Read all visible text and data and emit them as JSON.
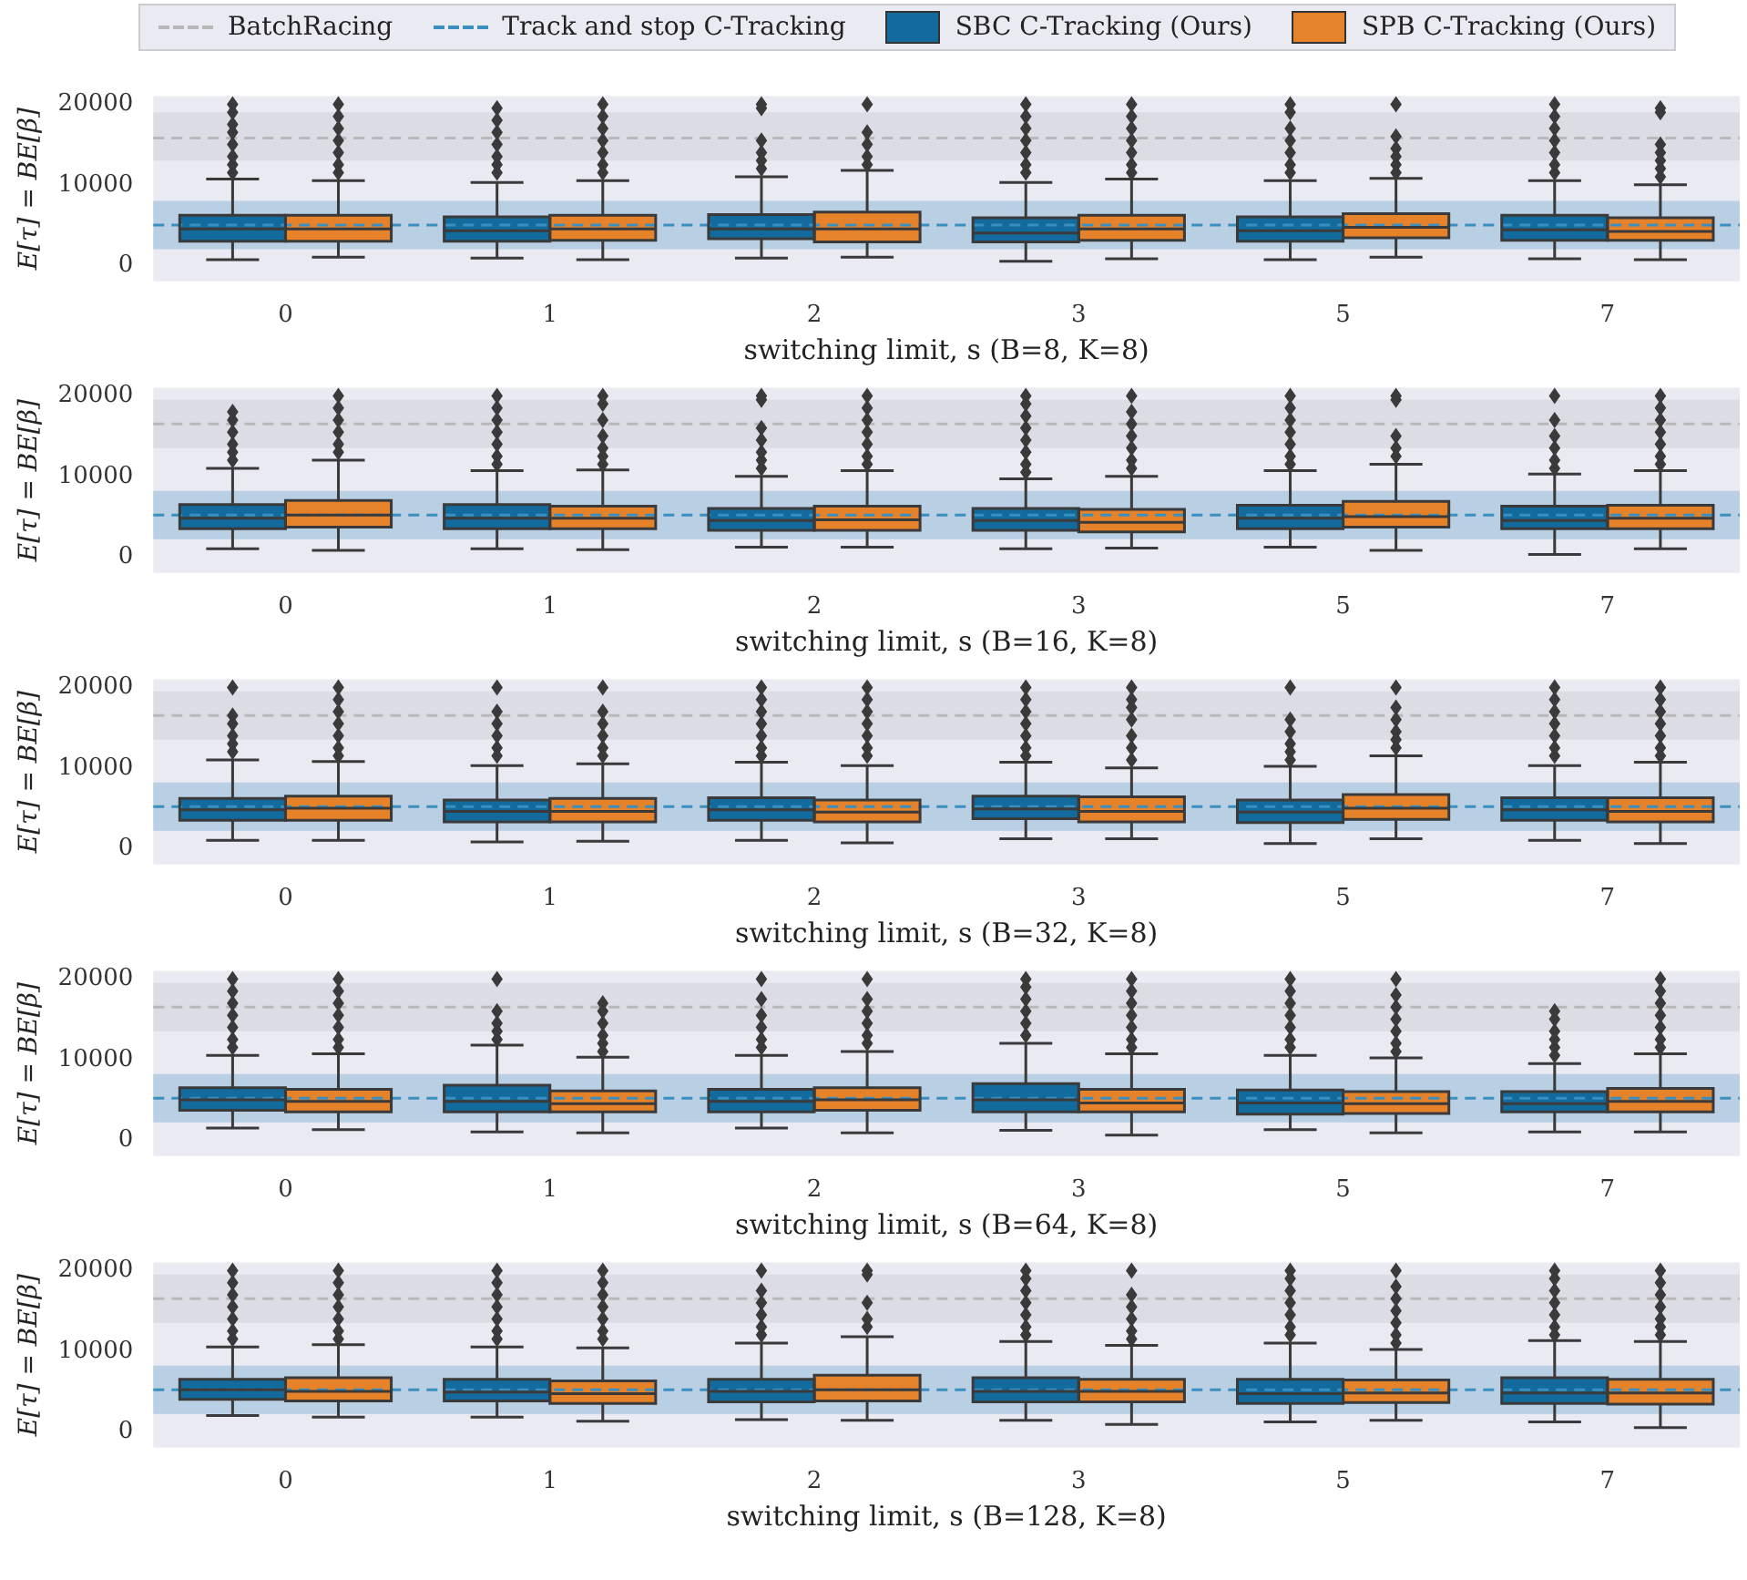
{
  "chart_data": [
    {
      "type": "box",
      "xlabel": "switching limit, s (B=8, K=8)",
      "ylabel": "E[τ] = BE[β]",
      "categories": [
        "0",
        "1",
        "2",
        "3",
        "5",
        "7"
      ],
      "ylim": [
        -2000,
        21000
      ],
      "yticks": [
        0,
        10000,
        20000
      ],
      "legend": "top",
      "marker": "diamond",
      "ref_lines": [
        {
          "axis": "y",
          "value": 15800,
          "label": "BatchRacing",
          "color": "#b8b8b8",
          "line_style": "dashed"
        },
        {
          "axis": "y",
          "value": 5000,
          "label": "Track and stop C-Tracking",
          "color": "#3a8fc0",
          "line_style": "dashed"
        }
      ],
      "bands": [
        {
          "axis": "y",
          "from": 13000,
          "to": 19000,
          "color": "#dcdce4"
        },
        {
          "axis": "y",
          "from": 2000,
          "to": 8000,
          "color": "#b9cfe3"
        }
      ],
      "series": [
        {
          "name": "SBC C-Tracking (Ours)",
          "color": "#136a9c",
          "boxes": [
            {
              "low": 700,
              "q1": 3000,
              "median": 4500,
              "q3": 6200,
              "high": 10700,
              "outliers": [
                11500,
                12500,
                13500,
                15000,
                16500,
                17500,
                19000,
                20000
              ]
            },
            {
              "low": 900,
              "q1": 3000,
              "median": 4300,
              "q3": 6000,
              "high": 10300,
              "outliers": [
                11500,
                12500,
                13500,
                15000,
                16500,
                18000,
                19500
              ]
            },
            {
              "low": 900,
              "q1": 3300,
              "median": 4500,
              "q3": 6300,
              "high": 11000,
              "outliers": [
                12000,
                13000,
                14000,
                15500,
                19500,
                20000
              ]
            },
            {
              "low": 500,
              "q1": 2900,
              "median": 4000,
              "q3": 5900,
              "high": 10300,
              "outliers": [
                11500,
                12500,
                14000,
                15500,
                17000,
                18500,
                20000
              ]
            },
            {
              "low": 700,
              "q1": 3000,
              "median": 4300,
              "q3": 6000,
              "high": 10500,
              "outliers": [
                11500,
                12500,
                14000,
                15500,
                17000,
                19000,
                20000
              ]
            },
            {
              "low": 800,
              "q1": 3100,
              "median": 4400,
              "q3": 6200,
              "high": 10500,
              "outliers": [
                11500,
                12500,
                14000,
                15500,
                17000,
                18500,
                20000
              ]
            }
          ]
        },
        {
          "name": "SPB C-Tracking (Ours)",
          "color": "#e6832a",
          "boxes": [
            {
              "low": 1000,
              "q1": 3000,
              "median": 4500,
              "q3": 6200,
              "high": 10500,
              "outliers": [
                11500,
                12500,
                14000,
                15500,
                17000,
                18500,
                20000
              ]
            },
            {
              "low": 700,
              "q1": 3100,
              "median": 4500,
              "q3": 6200,
              "high": 10500,
              "outliers": [
                11500,
                12500,
                14000,
                15500,
                17000,
                18500,
                20000
              ]
            },
            {
              "low": 1000,
              "q1": 2900,
              "median": 4500,
              "q3": 6600,
              "high": 11800,
              "outliers": [
                12500,
                13500,
                15000,
                16500,
                20000
              ]
            },
            {
              "low": 800,
              "q1": 3100,
              "median": 4500,
              "q3": 6200,
              "high": 10700,
              "outliers": [
                11500,
                12500,
                14000,
                15500,
                17000,
                18500,
                20000
              ]
            },
            {
              "low": 1000,
              "q1": 3400,
              "median": 4700,
              "q3": 6400,
              "high": 10800,
              "outliers": [
                11500,
                12500,
                13500,
                14500,
                16000,
                20000
              ]
            },
            {
              "low": 700,
              "q1": 3100,
              "median": 4200,
              "q3": 5900,
              "high": 10000,
              "outliers": [
                11000,
                12000,
                13000,
                14000,
                15000,
                19000,
                19500
              ]
            }
          ]
        }
      ]
    },
    {
      "type": "box",
      "xlabel": "switching limit, s (B=16, K=8)",
      "ylabel": "E[τ] = BE[β]",
      "categories": [
        "0",
        "1",
        "2",
        "3",
        "5",
        "7"
      ],
      "ylim": [
        -2000,
        21000
      ],
      "yticks": [
        0,
        10000,
        20000
      ],
      "marker": "diamond",
      "ref_lines": [
        {
          "axis": "y",
          "value": 16500,
          "color": "#b8b8b8",
          "line_style": "dashed"
        },
        {
          "axis": "y",
          "value": 5200,
          "color": "#3a8fc0",
          "line_style": "dashed"
        }
      ],
      "bands": [
        {
          "axis": "y",
          "from": 13500,
          "to": 19500,
          "color": "#dcdce4"
        },
        {
          "axis": "y",
          "from": 2200,
          "to": 8200,
          "color": "#b9cfe3"
        }
      ],
      "series": [
        {
          "color": "#136a9c",
          "boxes": [
            {
              "low": 1000,
              "q1": 3500,
              "median": 4800,
              "q3": 6500,
              "high": 11000,
              "outliers": [
                12000,
                13000,
                14000,
                15500,
                17000,
                18000
              ]
            },
            {
              "low": 1000,
              "q1": 3500,
              "median": 4800,
              "q3": 6500,
              "high": 10700,
              "outliers": [
                11500,
                12500,
                14000,
                15500,
                17000,
                18500,
                20000
              ]
            },
            {
              "low": 1200,
              "q1": 3300,
              "median": 4500,
              "q3": 6000,
              "high": 10000,
              "outliers": [
                11000,
                12000,
                13000,
                14500,
                16000,
                19500,
                20000
              ]
            },
            {
              "low": 1000,
              "q1": 3300,
              "median": 4500,
              "q3": 6000,
              "high": 9700,
              "outliers": [
                10500,
                11500,
                13000,
                14500,
                16000,
                17500,
                19000,
                20000
              ]
            },
            {
              "low": 1200,
              "q1": 3500,
              "median": 4800,
              "q3": 6400,
              "high": 10700,
              "outliers": [
                11500,
                12500,
                14000,
                15500,
                17000,
                18500,
                20000
              ]
            },
            {
              "low": 300,
              "q1": 3500,
              "median": 4500,
              "q3": 6300,
              "high": 10300,
              "outliers": [
                11000,
                12000,
                13500,
                15000,
                17000,
                20000
              ]
            }
          ]
        },
        {
          "color": "#e6832a",
          "boxes": [
            {
              "low": 800,
              "q1": 3700,
              "median": 5200,
              "q3": 7000,
              "high": 12000,
              "outliers": [
                13000,
                14000,
                15500,
                17000,
                18500,
                20000
              ]
            },
            {
              "low": 900,
              "q1": 3500,
              "median": 4800,
              "q3": 6300,
              "high": 10800,
              "outliers": [
                11500,
                12500,
                13500,
                15000,
                17000,
                19000,
                20000
              ]
            },
            {
              "low": 1200,
              "q1": 3300,
              "median": 4600,
              "q3": 6300,
              "high": 10700,
              "outliers": [
                11500,
                12500,
                14000,
                15500,
                17000,
                18500,
                20000
              ]
            },
            {
              "low": 1100,
              "q1": 3100,
              "median": 4300,
              "q3": 5900,
              "high": 10000,
              "outliers": [
                11000,
                12000,
                13500,
                15000,
                16500,
                18000,
                20000
              ]
            },
            {
              "low": 800,
              "q1": 3700,
              "median": 5000,
              "q3": 6900,
              "high": 11500,
              "outliers": [
                12500,
                13500,
                15000,
                19500,
                20000
              ]
            },
            {
              "low": 1000,
              "q1": 3500,
              "median": 4800,
              "q3": 6400,
              "high": 10700,
              "outliers": [
                11500,
                12500,
                14000,
                15500,
                17000,
                18500,
                20000
              ]
            }
          ]
        }
      ]
    },
    {
      "type": "box",
      "xlabel": "switching limit, s (B=32, K=8)",
      "ylabel": "E[τ] = BE[β]",
      "categories": [
        "0",
        "1",
        "2",
        "3",
        "5",
        "7"
      ],
      "ylim": [
        -2000,
        21000
      ],
      "yticks": [
        0,
        10000,
        20000
      ],
      "marker": "diamond",
      "ref_lines": [
        {
          "axis": "y",
          "value": 16500,
          "color": "#b8b8b8",
          "line_style": "dashed"
        },
        {
          "axis": "y",
          "value": 5200,
          "color": "#3a8fc0",
          "line_style": "dashed"
        }
      ],
      "bands": [
        {
          "axis": "y",
          "from": 13500,
          "to": 19500,
          "color": "#dcdce4"
        },
        {
          "axis": "y",
          "from": 2200,
          "to": 8200,
          "color": "#b9cfe3"
        }
      ],
      "series": [
        {
          "color": "#136a9c",
          "boxes": [
            {
              "low": 1000,
              "q1": 3500,
              "median": 4800,
              "q3": 6200,
              "high": 11000,
              "outliers": [
                12000,
                13000,
                14000,
                15500,
                16500,
                20000
              ]
            },
            {
              "low": 800,
              "q1": 3300,
              "median": 4600,
              "q3": 6000,
              "high": 10300,
              "outliers": [
                11500,
                12500,
                14000,
                15500,
                17000,
                20000
              ]
            },
            {
              "low": 1000,
              "q1": 3500,
              "median": 4800,
              "q3": 6300,
              "high": 10700,
              "outliers": [
                11500,
                12500,
                14000,
                15500,
                17000,
                18500,
                20000
              ]
            },
            {
              "low": 1200,
              "q1": 3700,
              "median": 4900,
              "q3": 6500,
              "high": 10700,
              "outliers": [
                11500,
                12500,
                14000,
                15500,
                17000,
                18500,
                20000
              ]
            },
            {
              "low": 600,
              "q1": 3200,
              "median": 4500,
              "q3": 6000,
              "high": 10200,
              "outliers": [
                11000,
                12000,
                13000,
                14500,
                16000,
                20000
              ]
            },
            {
              "low": 1000,
              "q1": 3500,
              "median": 4800,
              "q3": 6300,
              "high": 10300,
              "outliers": [
                11500,
                12500,
                14000,
                15500,
                17000,
                18500,
                20000
              ]
            }
          ]
        },
        {
          "color": "#e6832a",
          "boxes": [
            {
              "low": 1000,
              "q1": 3500,
              "median": 5000,
              "q3": 6500,
              "high": 10800,
              "outliers": [
                11500,
                12500,
                14000,
                15500,
                17000,
                18500,
                20000
              ]
            },
            {
              "low": 900,
              "q1": 3300,
              "median": 4600,
              "q3": 6200,
              "high": 10500,
              "outliers": [
                11500,
                12500,
                14000,
                15500,
                17000,
                20000
              ]
            },
            {
              "low": 700,
              "q1": 3300,
              "median": 4500,
              "q3": 6000,
              "high": 10300,
              "outliers": [
                11500,
                12500,
                14000,
                15500,
                17000,
                18500,
                20000
              ]
            },
            {
              "low": 1200,
              "q1": 3300,
              "median": 4600,
              "q3": 6400,
              "high": 10000,
              "outliers": [
                11000,
                12500,
                14000,
                16000,
                17500,
                18500,
                20000
              ]
            },
            {
              "low": 1200,
              "q1": 3600,
              "median": 5000,
              "q3": 6700,
              "high": 11500,
              "outliers": [
                12500,
                13500,
                14500,
                16000,
                17500,
                20000
              ]
            },
            {
              "low": 600,
              "q1": 3300,
              "median": 4600,
              "q3": 6300,
              "high": 10700,
              "outliers": [
                11500,
                12500,
                14000,
                15500,
                17000,
                18500,
                20000
              ]
            }
          ]
        }
      ]
    },
    {
      "type": "box",
      "xlabel": "switching limit, s (B=64, K=8)",
      "ylabel": "E[τ] = BE[β]",
      "categories": [
        "0",
        "1",
        "2",
        "3",
        "5",
        "7"
      ],
      "ylim": [
        -2000,
        21000
      ],
      "yticks": [
        0,
        10000,
        20000
      ],
      "marker": "diamond",
      "ref_lines": [
        {
          "axis": "y",
          "value": 16500,
          "color": "#b8b8b8",
          "line_style": "dashed"
        },
        {
          "axis": "y",
          "value": 5200,
          "color": "#3a8fc0",
          "line_style": "dashed"
        }
      ],
      "bands": [
        {
          "axis": "y",
          "from": 13500,
          "to": 19500,
          "color": "#dcdce4"
        },
        {
          "axis": "y",
          "from": 2200,
          "to": 8200,
          "color": "#b9cfe3"
        }
      ],
      "series": [
        {
          "color": "#136a9c",
          "boxes": [
            {
              "low": 1500,
              "q1": 3700,
              "median": 5000,
              "q3": 6500,
              "high": 10500,
              "outliers": [
                11500,
                12500,
                14000,
                15500,
                17000,
                18500,
                20000
              ]
            },
            {
              "low": 1000,
              "q1": 3500,
              "median": 4800,
              "q3": 6800,
              "high": 11800,
              "outliers": [
                12500,
                13500,
                14500,
                16000,
                20000
              ]
            },
            {
              "low": 1500,
              "q1": 3500,
              "median": 4800,
              "q3": 6300,
              "high": 10500,
              "outliers": [
                11500,
                12500,
                14000,
                15500,
                17500,
                20000
              ]
            },
            {
              "low": 1200,
              "q1": 3500,
              "median": 5000,
              "q3": 7000,
              "high": 12000,
              "outliers": [
                13000,
                14500,
                16000,
                17500,
                19000,
                20000
              ]
            },
            {
              "low": 1300,
              "q1": 3200,
              "median": 4600,
              "q3": 6200,
              "high": 10500,
              "outliers": [
                11500,
                12500,
                14000,
                15500,
                17000,
                18500,
                20000
              ]
            },
            {
              "low": 1000,
              "q1": 3500,
              "median": 4500,
              "q3": 6000,
              "high": 9500,
              "outliers": [
                10500,
                11500,
                12500,
                13500,
                15000,
                16000
              ]
            }
          ]
        },
        {
          "color": "#e6832a",
          "boxes": [
            {
              "low": 1300,
              "q1": 3500,
              "median": 4800,
              "q3": 6300,
              "high": 10700,
              "outliers": [
                11500,
                12500,
                14000,
                15500,
                17000,
                18500,
                20000
              ]
            },
            {
              "low": 900,
              "q1": 3500,
              "median": 4500,
              "q3": 6100,
              "high": 10300,
              "outliers": [
                11000,
                12000,
                13000,
                14500,
                16000,
                17000
              ]
            },
            {
              "low": 900,
              "q1": 3700,
              "median": 5000,
              "q3": 6500,
              "high": 11000,
              "outliers": [
                12000,
                13000,
                14500,
                16000,
                17500,
                20000
              ]
            },
            {
              "low": 600,
              "q1": 3500,
              "median": 4600,
              "q3": 6300,
              "high": 10700,
              "outliers": [
                11500,
                12500,
                14000,
                15500,
                17000,
                18500,
                20000
              ]
            },
            {
              "low": 900,
              "q1": 3300,
              "median": 4500,
              "q3": 6000,
              "high": 10200,
              "outliers": [
                11000,
                12000,
                13500,
                15000,
                16500,
                18000,
                20000
              ]
            },
            {
              "low": 1000,
              "q1": 3500,
              "median": 4800,
              "q3": 6400,
              "high": 10700,
              "outliers": [
                11500,
                12500,
                14000,
                15500,
                17000,
                18500,
                20000
              ]
            }
          ]
        }
      ]
    },
    {
      "type": "box",
      "xlabel": "switching limit, s (B=128, K=8)",
      "ylabel": "E[τ] = BE[β]",
      "categories": [
        "0",
        "1",
        "2",
        "3",
        "5",
        "7"
      ],
      "ylim": [
        -2000,
        21000
      ],
      "yticks": [
        0,
        10000,
        20000
      ],
      "marker": "diamond",
      "ref_lines": [
        {
          "axis": "y",
          "value": 16500,
          "color": "#b8b8b8",
          "line_style": "dashed"
        },
        {
          "axis": "y",
          "value": 5200,
          "color": "#3a8fc0",
          "line_style": "dashed"
        }
      ],
      "bands": [
        {
          "axis": "y",
          "from": 13500,
          "to": 19500,
          "color": "#dcdce4"
        },
        {
          "axis": "y",
          "from": 2200,
          "to": 8200,
          "color": "#b9cfe3"
        }
      ],
      "series": [
        {
          "color": "#136a9c",
          "boxes": [
            {
              "low": 2000,
              "q1": 4000,
              "median": 5200,
              "q3": 6500,
              "high": 10500,
              "outliers": [
                11500,
                12500,
                14000,
                15500,
                17000,
                18500,
                20000
              ]
            },
            {
              "low": 1800,
              "q1": 3800,
              "median": 4900,
              "q3": 6500,
              "high": 10500,
              "outliers": [
                11500,
                12500,
                14000,
                15500,
                17000,
                18500,
                20000
              ]
            },
            {
              "low": 1500,
              "q1": 3700,
              "median": 5000,
              "q3": 6500,
              "high": 11000,
              "outliers": [
                12000,
                13000,
                14500,
                16000,
                17500,
                20000
              ]
            },
            {
              "low": 1400,
              "q1": 3700,
              "median": 5000,
              "q3": 6700,
              "high": 11200,
              "outliers": [
                12000,
                13000,
                14500,
                16000,
                17500,
                19000,
                20000
              ]
            },
            {
              "low": 1200,
              "q1": 3500,
              "median": 4700,
              "q3": 6500,
              "high": 11000,
              "outliers": [
                12000,
                13000,
                14500,
                16000,
                17500,
                19000,
                20000
              ]
            },
            {
              "low": 1200,
              "q1": 3500,
              "median": 4800,
              "q3": 6700,
              "high": 11300,
              "outliers": [
                12000,
                13000,
                14500,
                16000,
                17500,
                19000,
                20000
              ]
            }
          ]
        },
        {
          "color": "#e6832a",
          "boxes": [
            {
              "low": 1800,
              "q1": 3800,
              "median": 5000,
              "q3": 6700,
              "high": 10800,
              "outliers": [
                11500,
                12500,
                14000,
                15500,
                17000,
                18500,
                20000
              ]
            },
            {
              "low": 1300,
              "q1": 3500,
              "median": 4700,
              "q3": 6300,
              "high": 10400,
              "outliers": [
                11500,
                12500,
                14000,
                15500,
                17000,
                18500,
                20000
              ]
            },
            {
              "low": 1400,
              "q1": 3800,
              "median": 5200,
              "q3": 7000,
              "high": 11800,
              "outliers": [
                13000,
                14000,
                16000,
                19500,
                20000
              ]
            },
            {
              "low": 900,
              "q1": 3700,
              "median": 5000,
              "q3": 6500,
              "high": 10700,
              "outliers": [
                11500,
                12500,
                14000,
                15500,
                17000,
                20000
              ]
            },
            {
              "low": 1400,
              "q1": 3600,
              "median": 4800,
              "q3": 6400,
              "high": 10200,
              "outliers": [
                11000,
                12000,
                13500,
                15000,
                16500,
                18000,
                20000
              ]
            },
            {
              "low": 500,
              "q1": 3400,
              "median": 4800,
              "q3": 6500,
              "high": 11200,
              "outliers": [
                12000,
                13000,
                14000,
                15500,
                17000,
                18500,
                20000
              ]
            }
          ]
        }
      ]
    }
  ]
}
